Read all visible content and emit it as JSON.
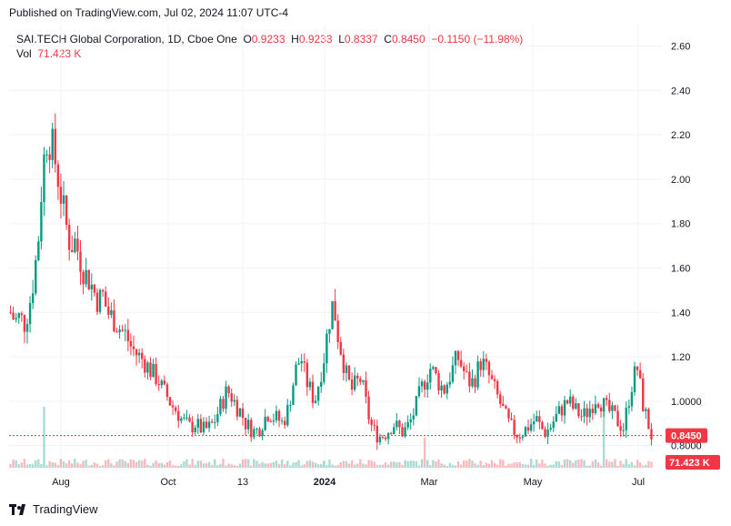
{
  "header": {
    "published": "Published on TradingView.com, Jul 02, 2024 11:07 UTC-4"
  },
  "legend": {
    "symbol": "SAI.TECH Global Corporation, 1D, Cboe One",
    "o_label": "O",
    "o_value": "0.9233",
    "h_label": "H",
    "h_value": "0.9233",
    "l_label": "L",
    "l_value": "0.8337",
    "c_label": "C",
    "c_value": "0.8450",
    "change": "−0.1150 (−11.98%)",
    "vol_label": "Vol",
    "vol_value": "71.423 K"
  },
  "footer": {
    "brand": "TradingView"
  },
  "colors": {
    "up": "#089981",
    "down": "#f23645",
    "grid": "#f0f3fa",
    "axis_text": "#131722",
    "price_line": "#f23645"
  },
  "chart_data": {
    "type": "candlestick",
    "y_ticks": [
      "2.60",
      "2.40",
      "2.20",
      "2.00",
      "1.80",
      "1.60",
      "1.40",
      "1.20",
      "1.0000",
      "0.8000"
    ],
    "ylim": [
      0.7,
      2.66
    ],
    "x_ticks": [
      "Aug",
      "Oct",
      "13",
      "2024",
      "Mar",
      "May",
      "Jul"
    ],
    "last_price_label": "0.8450",
    "last_price": 0.845,
    "volume_label": "71.423 K",
    "close_series_approx": [
      1.4,
      1.36,
      1.38,
      1.35,
      1.42,
      1.55,
      1.72,
      2.05,
      2.2,
      2.15,
      2.05,
      1.92,
      1.8,
      1.7,
      1.72,
      1.65,
      1.58,
      1.55,
      1.5,
      1.45,
      1.48,
      1.4,
      1.38,
      1.35,
      1.32,
      1.3,
      1.25,
      1.22,
      1.2,
      1.18,
      1.15,
      1.12,
      1.1,
      1.05,
      1.02,
      0.98,
      0.96,
      0.92,
      0.9,
      0.88,
      0.9,
      0.88,
      0.87,
      0.88,
      0.9,
      0.95,
      1.0,
      1.05,
      1.02,
      0.98,
      0.95,
      0.9,
      0.88,
      0.86,
      0.88,
      0.92,
      0.95,
      0.93,
      0.92,
      0.9,
      0.95,
      1.05,
      1.15,
      1.2,
      1.1,
      1.05,
      1.0,
      1.1,
      1.2,
      1.35,
      1.45,
      1.3,
      1.2,
      1.1,
      1.05,
      1.08,
      1.1,
      1.0,
      0.9,
      0.86,
      0.84,
      0.85,
      0.87,
      0.9,
      0.88,
      0.86,
      0.88,
      0.92,
      0.98,
      1.05,
      1.1,
      1.15,
      1.12,
      1.08,
      1.05,
      1.1,
      1.15,
      1.2,
      1.15,
      1.1,
      1.08,
      1.12,
      1.18,
      1.15,
      1.1,
      1.05,
      1.0,
      0.95,
      0.9,
      0.87,
      0.85,
      0.86,
      0.88,
      0.9,
      0.92,
      0.88,
      0.86,
      0.88,
      0.92,
      0.95,
      0.98,
      1.0,
      0.97,
      0.95,
      0.93,
      0.95,
      0.98,
      1.02,
      1.0,
      0.97,
      0.95,
      0.93,
      0.9,
      0.88,
      1.0,
      1.1,
      1.15,
      1.0,
      0.92,
      0.845
    ]
  }
}
